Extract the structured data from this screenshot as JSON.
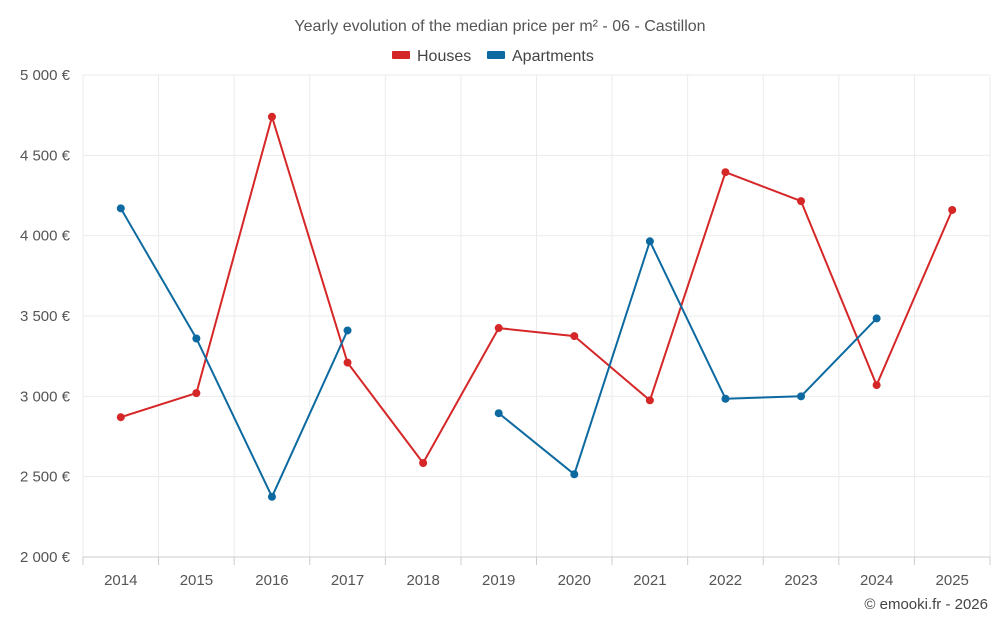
{
  "chart_data": {
    "type": "line",
    "title": "Yearly evolution of the median price per m² - 06 - Castillon",
    "categories": [
      "2014",
      "2015",
      "2016",
      "2017",
      "2018",
      "2019",
      "2020",
      "2021",
      "2022",
      "2023",
      "2024",
      "2025"
    ],
    "series": [
      {
        "name": "Houses",
        "color": "#d62728",
        "values": [
          2870,
          3020,
          4740,
          3210,
          2585,
          3425,
          3375,
          2975,
          4395,
          4215,
          3070,
          4160
        ]
      },
      {
        "name": "Apartments",
        "color": "#0d6aa0",
        "values": [
          4170,
          3360,
          2375,
          3410,
          null,
          2895,
          2515,
          3965,
          2985,
          3000,
          3485,
          null
        ]
      }
    ],
    "ylim": [
      2000,
      5000
    ],
    "yticks": [
      2000,
      2500,
      3000,
      3500,
      4000,
      4500,
      5000
    ],
    "ytick_labels": [
      "2 000 €",
      "2 500 €",
      "3 000 €",
      "3 500 €",
      "4 000 €",
      "4 500 €",
      "5 000 €"
    ],
    "legend_position": "top-center",
    "grid": true,
    "xlabel": "",
    "ylabel": ""
  },
  "credit": "© emooki.fr - 2026"
}
